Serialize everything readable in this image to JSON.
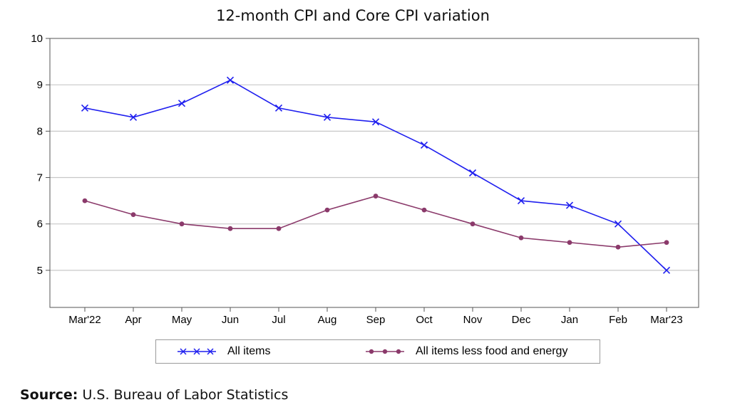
{
  "title": "12-month CPI and Core CPI variation",
  "source": {
    "label": "Source:",
    "text": "U.S. Bureau of Labor Statistics"
  },
  "colors": {
    "all_items": "#1f1fef",
    "core": "#8b3a6b",
    "grid": "#c8c8c8",
    "axis": "#555555"
  },
  "chart_data": {
    "type": "line",
    "title": "12-month CPI and Core CPI variation",
    "xlabel": "",
    "ylabel": "",
    "categories": [
      "Mar'22",
      "Apr",
      "May",
      "Jun",
      "Jul",
      "Aug",
      "Sep",
      "Oct",
      "Nov",
      "Dec",
      "Jan",
      "Feb",
      "Mar'23"
    ],
    "ylim": [
      4.2,
      10
    ],
    "yticks": [
      5,
      6,
      7,
      8,
      9,
      10
    ],
    "grid": true,
    "legend_position": "bottom",
    "series": [
      {
        "name": "All items",
        "marker": "x",
        "color": "#1f1fef",
        "values": [
          8.5,
          8.3,
          8.6,
          9.1,
          8.5,
          8.3,
          8.2,
          7.7,
          7.1,
          6.5,
          6.4,
          6.0,
          5.0
        ]
      },
      {
        "name": "All items less food and energy",
        "marker": "dot",
        "color": "#8b3a6b",
        "values": [
          6.5,
          6.2,
          6.0,
          5.9,
          5.9,
          6.3,
          6.6,
          6.3,
          6.0,
          5.7,
          5.6,
          5.5,
          5.6
        ]
      }
    ]
  }
}
